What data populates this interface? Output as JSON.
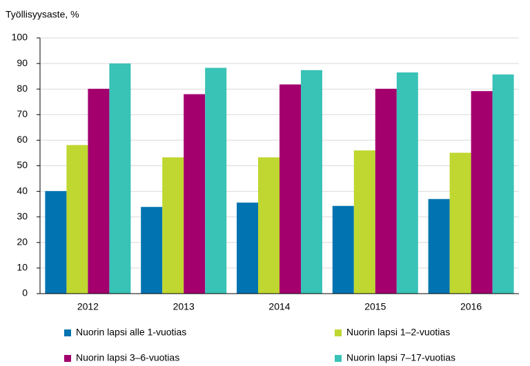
{
  "chart_data": {
    "type": "bar",
    "y_axis_label": "Työllisyysaste, %",
    "categories": [
      "2012",
      "2013",
      "2014",
      "2015",
      "2016"
    ],
    "series": [
      {
        "name": "Nuorin lapsi alle 1-vuotias",
        "color": "#0073b0",
        "values": [
          40.1,
          33.9,
          35.6,
          34.3,
          37.0
        ]
      },
      {
        "name": "Nuorin lapsi 1–2-vuotias",
        "color": "#bfd730",
        "values": [
          58.1,
          53.3,
          53.3,
          56.0,
          55.1
        ]
      },
      {
        "name": "Nuorin lapsi 3–6-vuotias",
        "color": "#a3006e",
        "values": [
          80.1,
          78.0,
          81.8,
          80.1,
          79.2
        ]
      },
      {
        "name": "Nuorin lapsi 7–17-vuotias",
        "color": "#39c2b6",
        "values": [
          90.0,
          88.3,
          87.4,
          86.5,
          85.7
        ]
      }
    ],
    "ylim": [
      0,
      100
    ],
    "yticks": [
      0,
      10,
      20,
      30,
      40,
      50,
      60,
      70,
      80,
      90,
      100
    ],
    "grid": true,
    "legend": "bottom"
  }
}
